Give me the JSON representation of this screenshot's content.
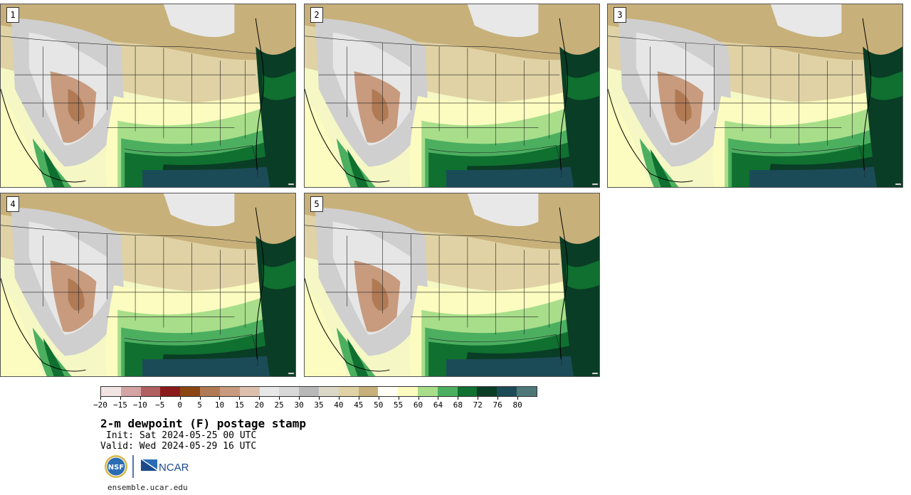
{
  "panels": [
    {
      "label": "1"
    },
    {
      "label": "2"
    },
    {
      "label": "3"
    },
    {
      "label": "4"
    },
    {
      "label": "5"
    }
  ],
  "colorbar": {
    "colors": [
      "#f3e4e4",
      "#d4a3a3",
      "#b06060",
      "#8b1a1a",
      "#8b4513",
      "#b07a55",
      "#c89b7e",
      "#dcc0ad",
      "#e8e8e8",
      "#d8d8d8",
      "#b8b8b8",
      "#dcd8c8",
      "#e0d2a4",
      "#c8b07a",
      "#fffff4",
      "#fcfcc0",
      "#a8de8a",
      "#4caf60",
      "#0f7030",
      "#0a3d25",
      "#1c4b58",
      "#4e7878"
    ],
    "ticks": [
      "−20",
      "−15",
      "−10",
      "−5",
      "0",
      "5",
      "10",
      "15",
      "20",
      "25",
      "30",
      "35",
      "40",
      "45",
      "50",
      "55",
      "60",
      "64",
      "68",
      "72",
      "76",
      "80"
    ]
  },
  "title": "2-m dewpoint (F) postage stamp",
  "init": "Init: Sat 2024-05-25 00 UTC",
  "valid": "Valid: Wed 2024-05-29 16 UTC",
  "logos": {
    "nsf": "NSF",
    "ncar": "NCAR"
  },
  "site": "ensemble.ucar.edu"
}
